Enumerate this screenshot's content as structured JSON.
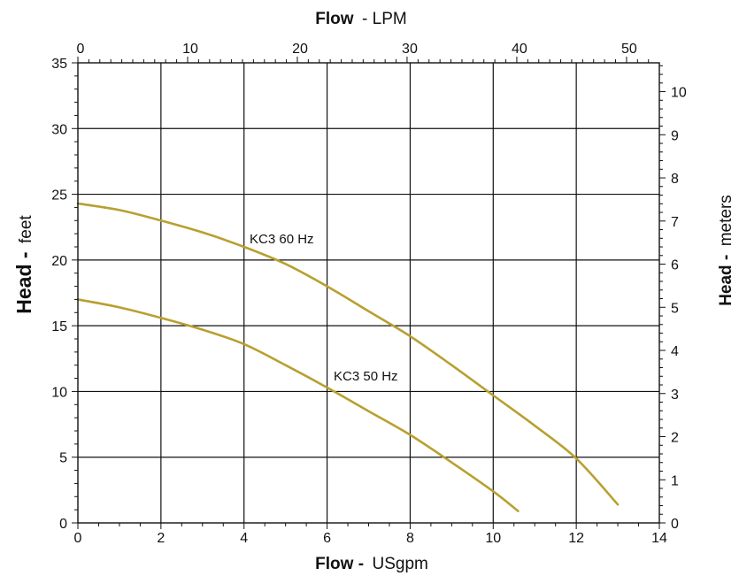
{
  "chart_data": {
    "type": "line",
    "title": "",
    "x_axis_bottom": {
      "label_bold": "Flow -",
      "label_unit": "USgpm",
      "range": [
        0,
        14
      ],
      "ticks": [
        0,
        2,
        4,
        6,
        8,
        10,
        12,
        14
      ],
      "minor_step": 0.5
    },
    "x_axis_top": {
      "label_bold": "Flow",
      "label_unit": "- LPM",
      "range": [
        0,
        52.99
      ],
      "ticks": [
        0,
        10,
        20,
        30,
        40,
        50
      ],
      "minor_step": 1
    },
    "y_axis_left": {
      "label_bold": "Head -",
      "label_unit": "feet",
      "range": [
        0,
        35
      ],
      "ticks": [
        0,
        5,
        10,
        15,
        20,
        25,
        30,
        35
      ],
      "minor_step": 1
    },
    "y_axis_right": {
      "label_bold": "Head -",
      "label_unit": "meters",
      "range": [
        0,
        10.668
      ],
      "ticks": [
        0,
        1,
        2,
        3,
        4,
        5,
        6,
        7,
        8,
        9,
        10
      ],
      "minor_step": 0.2
    },
    "grid": true,
    "series": [
      {
        "name": "KC3 60 Hz",
        "color": "#b8a030",
        "x": [
          0,
          1,
          2,
          3,
          4,
          5,
          6,
          7,
          8,
          9,
          10,
          11,
          12,
          13
        ],
        "y": [
          24.3,
          23.8,
          23.0,
          22.1,
          21.0,
          19.7,
          18.0,
          16.1,
          14.2,
          12.0,
          9.7,
          7.4,
          4.9,
          1.4
        ]
      },
      {
        "name": "KC3 50 Hz",
        "color": "#b8a030",
        "x": [
          0,
          1,
          2,
          3,
          4,
          5,
          6,
          7,
          8,
          9,
          10,
          10.6
        ],
        "y": [
          17.0,
          16.4,
          15.6,
          14.7,
          13.6,
          12.0,
          10.3,
          8.5,
          6.7,
          4.6,
          2.4,
          0.9
        ]
      }
    ],
    "annotations": [
      "KC3 60 Hz",
      "KC3 50 Hz"
    ]
  }
}
